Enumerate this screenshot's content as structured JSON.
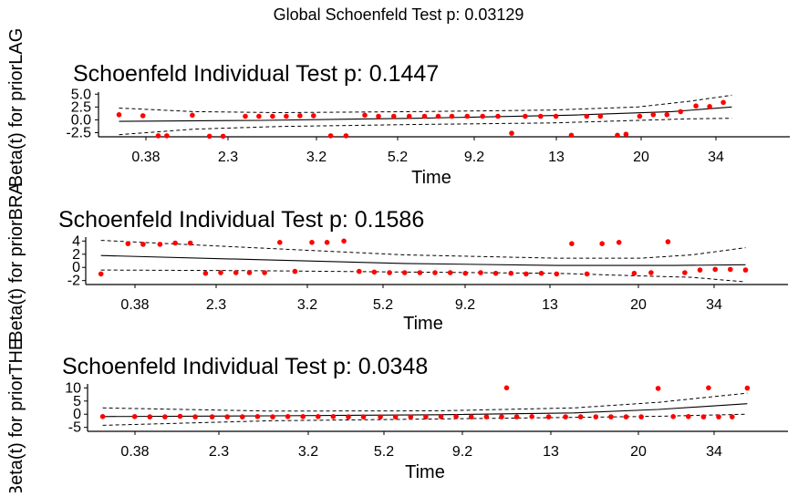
{
  "global_title": "Global Schoenfeld Test p: 0.03129",
  "chart_data": [
    {
      "type": "scatter",
      "title": "Schoenfeld Individual Test p: 0.1447",
      "xlabel": "Time",
      "ylabel": "Beta(t) for priorLAG",
      "x_tick_labels": [
        "0.38",
        "2.3",
        "3.2",
        "5.2",
        "9.2",
        "13",
        "20",
        "34"
      ],
      "y_tick_labels": [
        "-2.5",
        "0.0",
        "2.5",
        "5.0"
      ],
      "y_ticks": [
        -2.5,
        0,
        2.5,
        5
      ],
      "ylim": [
        -3.3,
        5.4
      ],
      "grid": false,
      "residual_color": "#ff0000",
      "residuals": [
        [
          0.6,
          1.0
        ],
        [
          2.0,
          0.8
        ],
        [
          2.9,
          -3.1
        ],
        [
          3.4,
          -3.1
        ],
        [
          4.9,
          0.9
        ],
        [
          5.9,
          -3.2
        ],
        [
          6.7,
          -3.2
        ],
        [
          8.0,
          0.7
        ],
        [
          8.8,
          0.7
        ],
        [
          9.6,
          0.7
        ],
        [
          10.4,
          0.7
        ],
        [
          11.2,
          0.8
        ],
        [
          12.0,
          0.8
        ],
        [
          13.0,
          -3.1
        ],
        [
          13.9,
          -3.1
        ],
        [
          15.0,
          0.9
        ],
        [
          15.8,
          0.7
        ],
        [
          16.7,
          0.7
        ],
        [
          17.6,
          0.7
        ],
        [
          18.5,
          0.7
        ],
        [
          19.3,
          0.7
        ],
        [
          20.1,
          0.7
        ],
        [
          21.0,
          0.7
        ],
        [
          21.9,
          0.7
        ],
        [
          22.8,
          0.7
        ],
        [
          23.6,
          -2.6
        ],
        [
          24.4,
          0.7
        ],
        [
          25.3,
          0.7
        ],
        [
          26.2,
          0.7
        ],
        [
          27.1,
          -3.0
        ],
        [
          28.0,
          0.7
        ],
        [
          28.8,
          0.7
        ],
        [
          29.8,
          -3.0
        ],
        [
          30.3,
          -2.8
        ],
        [
          31.1,
          0.7
        ],
        [
          31.9,
          1.0
        ],
        [
          32.7,
          1.0
        ],
        [
          33.5,
          1.6
        ],
        [
          34.4,
          2.7
        ],
        [
          35.2,
          2.6
        ],
        [
          36.0,
          3.4
        ]
      ],
      "fit": [
        [
          0.6,
          -0.3
        ],
        [
          9.0,
          -0.1
        ],
        [
          18.0,
          0.3
        ],
        [
          27.0,
          0.9
        ],
        [
          33.0,
          1.6
        ],
        [
          36.5,
          2.5
        ]
      ],
      "upper": [
        [
          0.6,
          2.3
        ],
        [
          5.0,
          1.6
        ],
        [
          10.0,
          1.4
        ],
        [
          18.0,
          1.6
        ],
        [
          26.0,
          1.9
        ],
        [
          31.0,
          2.5
        ],
        [
          34.0,
          3.6
        ],
        [
          36.5,
          4.8
        ]
      ],
      "lower": [
        [
          0.6,
          -2.9
        ],
        [
          5.0,
          -1.8
        ],
        [
          10.0,
          -1.3
        ],
        [
          18.0,
          -0.9
        ],
        [
          26.0,
          -0.6
        ],
        [
          31.0,
          -0.1
        ],
        [
          34.0,
          0.2
        ],
        [
          36.5,
          0.3
        ]
      ]
    },
    {
      "type": "scatter",
      "title": "Schoenfeld Individual Test p: 0.1586",
      "xlabel": "Time",
      "ylabel": "Beta(t) for priorBRA",
      "x_tick_labels": [
        "0.38",
        "2.3",
        "3.2",
        "5.2",
        "9.2",
        "13",
        "20",
        "34"
      ],
      "y_tick_labels": [
        "-2",
        "0",
        "2",
        "4"
      ],
      "y_ticks": [
        -2,
        0,
        2,
        4
      ],
      "ylim": [
        -2.6,
        4.6
      ],
      "grid": false,
      "residual_color": "#ff0000",
      "residuals": [
        [
          0.0,
          -1.0
        ],
        [
          1.6,
          3.6
        ],
        [
          2.5,
          3.5
        ],
        [
          3.5,
          3.5
        ],
        [
          4.4,
          3.7
        ],
        [
          5.3,
          3.7
        ],
        [
          6.2,
          -0.9
        ],
        [
          7.1,
          -0.8
        ],
        [
          8.0,
          -0.8
        ],
        [
          8.8,
          -0.8
        ],
        [
          9.7,
          -0.8
        ],
        [
          10.6,
          3.8
        ],
        [
          11.5,
          -0.6
        ],
        [
          12.5,
          3.8
        ],
        [
          13.4,
          3.8
        ],
        [
          14.4,
          4.0
        ],
        [
          15.3,
          -0.6
        ],
        [
          16.2,
          -0.7
        ],
        [
          17.1,
          -0.8
        ],
        [
          18.0,
          -0.8
        ],
        [
          18.9,
          -0.8
        ],
        [
          19.8,
          -0.8
        ],
        [
          20.7,
          -0.8
        ],
        [
          21.6,
          -0.9
        ],
        [
          22.5,
          -0.8
        ],
        [
          23.4,
          -0.9
        ],
        [
          24.3,
          -0.9
        ],
        [
          25.2,
          -1.0
        ],
        [
          26.1,
          -0.9
        ],
        [
          27.0,
          -1.0
        ],
        [
          27.9,
          3.6
        ],
        [
          28.8,
          -1.0
        ],
        [
          29.7,
          3.6
        ],
        [
          30.7,
          3.8
        ],
        [
          31.6,
          -0.9
        ],
        [
          32.6,
          -0.8
        ],
        [
          33.6,
          3.9
        ],
        [
          34.6,
          -0.8
        ],
        [
          35.5,
          -0.4
        ],
        [
          36.4,
          -0.3
        ],
        [
          37.3,
          -0.3
        ],
        [
          38.2,
          -0.4
        ]
      ],
      "fit": [
        [
          0.0,
          1.8
        ],
        [
          9.0,
          1.2
        ],
        [
          18.0,
          0.6
        ],
        [
          27.0,
          0.3
        ],
        [
          34.0,
          0.3
        ],
        [
          38.2,
          0.4
        ]
      ],
      "upper": [
        [
          0.0,
          4.1
        ],
        [
          9.0,
          3.0
        ],
        [
          18.0,
          1.9
        ],
        [
          27.0,
          1.4
        ],
        [
          32.0,
          1.4
        ],
        [
          35.0,
          1.9
        ],
        [
          38.2,
          3.0
        ]
      ],
      "lower": [
        [
          0.0,
          -0.4
        ],
        [
          9.0,
          -0.5
        ],
        [
          18.0,
          -0.7
        ],
        [
          27.0,
          -0.9
        ],
        [
          32.0,
          -1.3
        ],
        [
          35.0,
          -1.5
        ],
        [
          38.2,
          -2.2
        ]
      ]
    },
    {
      "type": "scatter",
      "title": "Schoenfeld Individual Test p: 0.0348",
      "xlabel": "Time",
      "ylabel": "Beta(t) for priorTHE",
      "x_tick_labels": [
        "0.38",
        "2.3",
        "3.2",
        "5.2",
        "9.2",
        "13",
        "20",
        "34"
      ],
      "y_tick_labels": [
        "-5",
        "0",
        "5",
        "10"
      ],
      "y_ticks": [
        -5,
        0,
        5,
        10
      ],
      "ylim": [
        -6.5,
        11.5
      ],
      "grid": false,
      "residual_color": "#ff0000",
      "residuals": [
        [
          0.0,
          -0.9
        ],
        [
          1.9,
          -0.9
        ],
        [
          2.8,
          -1.0
        ],
        [
          3.7,
          -1.0
        ],
        [
          4.6,
          -0.8
        ],
        [
          5.5,
          -1.0
        ],
        [
          6.5,
          -1.0
        ],
        [
          7.4,
          -1.0
        ],
        [
          8.3,
          -1.0
        ],
        [
          9.2,
          -0.9
        ],
        [
          10.1,
          -1.0
        ],
        [
          11.0,
          -0.9
        ],
        [
          11.9,
          -0.9
        ],
        [
          12.8,
          -0.9
        ],
        [
          13.7,
          -0.9
        ],
        [
          14.6,
          -1.0
        ],
        [
          15.5,
          -1.0
        ],
        [
          16.5,
          -1.0
        ],
        [
          17.4,
          -1.0
        ],
        [
          18.3,
          -1.0
        ],
        [
          19.2,
          -1.0
        ],
        [
          20.1,
          -0.9
        ],
        [
          21.0,
          -0.9
        ],
        [
          21.9,
          -1.0
        ],
        [
          22.8,
          -1.0
        ],
        [
          23.7,
          -1.0
        ],
        [
          24.6,
          -1.0
        ],
        [
          25.5,
          -0.9
        ],
        [
          24.0,
          10.0
        ],
        [
          26.5,
          -1.0
        ],
        [
          27.5,
          -1.0
        ],
        [
          28.4,
          -1.0
        ],
        [
          29.3,
          -1.0
        ],
        [
          30.2,
          -1.0
        ],
        [
          31.1,
          -1.0
        ],
        [
          32.0,
          -1.0
        ],
        [
          33.0,
          9.8
        ],
        [
          33.9,
          -0.9
        ],
        [
          34.8,
          -0.9
        ],
        [
          35.7,
          -1.0
        ],
        [
          36.6,
          -1.0
        ],
        [
          36.0,
          10.0
        ],
        [
          37.4,
          -1.0
        ],
        [
          38.3,
          9.9
        ]
      ],
      "fit": [
        [
          0.0,
          -0.9
        ],
        [
          10.0,
          -0.6
        ],
        [
          20.0,
          -0.2
        ],
        [
          28.0,
          0.5
        ],
        [
          33.0,
          1.8
        ],
        [
          38.3,
          4.0
        ]
      ],
      "upper": [
        [
          0.0,
          2.4
        ],
        [
          10.0,
          1.2
        ],
        [
          20.0,
          1.3
        ],
        [
          28.0,
          2.4
        ],
        [
          33.0,
          4.5
        ],
        [
          38.3,
          8.0
        ]
      ],
      "lower": [
        [
          0.0,
          -4.2
        ],
        [
          10.0,
          -2.5
        ],
        [
          20.0,
          -1.8
        ],
        [
          28.0,
          -1.2
        ],
        [
          33.0,
          -0.8
        ],
        [
          38.3,
          0.0
        ]
      ]
    }
  ]
}
